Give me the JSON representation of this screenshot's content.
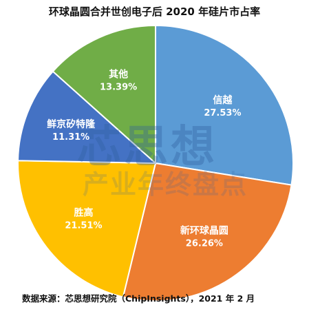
{
  "title": "环球晶圆合并世创电子后 2020 年硅片市占率",
  "source": "数据来源：芯思想研究院（ChipInsights），2021 年 2 月",
  "watermark": {
    "main": "芯思想",
    "sub": "产业年终盘点"
  },
  "chart_data": {
    "type": "pie",
    "title": "环球晶圆合并世创电子后 2020 年硅片市占率",
    "slices": [
      {
        "label": "信越",
        "value": 27.53,
        "value_label": "27.53%",
        "color": "#5b9bd5"
      },
      {
        "label": "新环球晶圆",
        "value": 26.26,
        "value_label": "26.26%",
        "color": "#ed7d31"
      },
      {
        "label": "胜高",
        "value": 21.51,
        "value_label": "21.51%",
        "color": "#ffc000"
      },
      {
        "label": "鲜京矽特隆",
        "value": 11.31,
        "value_label": "11.31%",
        "color": "#4472c4"
      },
      {
        "label": "其他",
        "value": 13.39,
        "value_label": "13.39%",
        "color": "#70ad47"
      }
    ]
  }
}
